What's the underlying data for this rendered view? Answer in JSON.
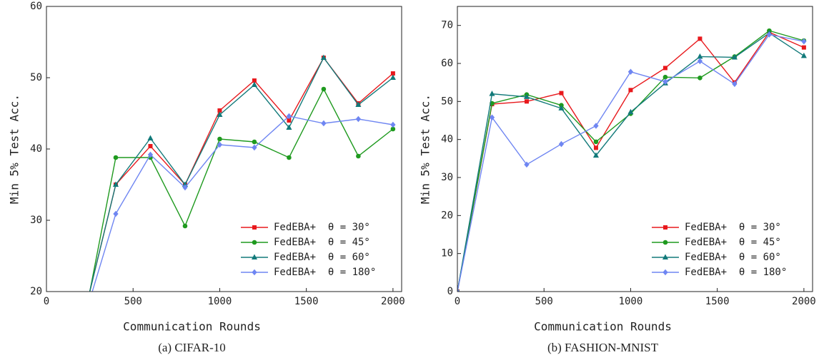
{
  "chart_data": [
    {
      "type": "line",
      "caption": "(a) CIFAR-10",
      "xlabel": "Communication Rounds",
      "ylabel": "Min 5% Test Acc.",
      "x": [
        200,
        400,
        600,
        800,
        1000,
        1200,
        1400,
        1600,
        1800,
        2000
      ],
      "xlim": [
        0,
        2050
      ],
      "xticks": [
        0,
        500,
        1000,
        1500,
        2000
      ],
      "ylim": [
        20,
        60
      ],
      "yticks": [
        20,
        30,
        40,
        50,
        60
      ],
      "legend": "lower right",
      "series": [
        {
          "name": "FedEBA+  θ = 30°",
          "color": "#e8191d",
          "marker": "square",
          "values": [
            15,
            35,
            40.4,
            35,
            45.4,
            49.6,
            44,
            52.8,
            46.4,
            50.6
          ]
        },
        {
          "name": "FedEBA+  θ = 45°",
          "color": "#1f9a1f",
          "marker": "circle",
          "values": [
            13.7,
            38.8,
            38.8,
            29.2,
            41.4,
            41,
            38.8,
            48.4,
            39,
            42.8
          ]
        },
        {
          "name": "FedEBA+  θ = 60°",
          "color": "#127a7a",
          "marker": "triangle",
          "values": [
            15,
            35,
            41.5,
            35,
            44.8,
            49,
            43,
            52.8,
            46.2,
            50
          ]
        },
        {
          "name": "FedEBA+  θ = 180°",
          "color": "#6f86f2",
          "marker": "diamond",
          "values": [
            14.8,
            30.9,
            39.2,
            34.6,
            40.6,
            40.2,
            44.6,
            43.6,
            44.2,
            43.4
          ]
        }
      ]
    },
    {
      "type": "line",
      "caption": "(b) FASHION-MNIST",
      "xlabel": "Communication Rounds",
      "ylabel": "Min 5% Test Acc.",
      "x": [
        0,
        200,
        400,
        600,
        800,
        1000,
        1200,
        1400,
        1600,
        1800,
        2000
      ],
      "xlim": [
        0,
        2050
      ],
      "xticks": [
        0,
        500,
        1000,
        1500,
        2000
      ],
      "ylim": [
        0,
        75
      ],
      "yticks": [
        0,
        10,
        20,
        30,
        40,
        50,
        60,
        70
      ],
      "legend": "lower right",
      "series": [
        {
          "name": "FedEBA+  θ = 30°",
          "color": "#e8191d",
          "marker": "square",
          "values": [
            0,
            49.3,
            50,
            52.2,
            37.8,
            53,
            58.8,
            66.5,
            55,
            68.2,
            64.2
          ]
        },
        {
          "name": "FedEBA+  θ = 45°",
          "color": "#1f9a1f",
          "marker": "circle",
          "values": [
            0,
            49.5,
            51.8,
            49,
            39.4,
            46.8,
            56.4,
            56.2,
            61.8,
            68.6,
            66
          ]
        },
        {
          "name": "FedEBA+  θ = 60°",
          "color": "#127a7a",
          "marker": "triangle",
          "values": [
            0,
            52,
            51.2,
            48.2,
            35.8,
            47.2,
            54.8,
            61.8,
            61.6,
            68,
            62
          ]
        },
        {
          "name": "FedEBA+  θ = 180°",
          "color": "#6f86f2",
          "marker": "diamond",
          "values": [
            0,
            45.8,
            33.4,
            38.8,
            43.6,
            57.8,
            55.2,
            60.6,
            54.6,
            67.6,
            65.8
          ]
        }
      ]
    }
  ]
}
